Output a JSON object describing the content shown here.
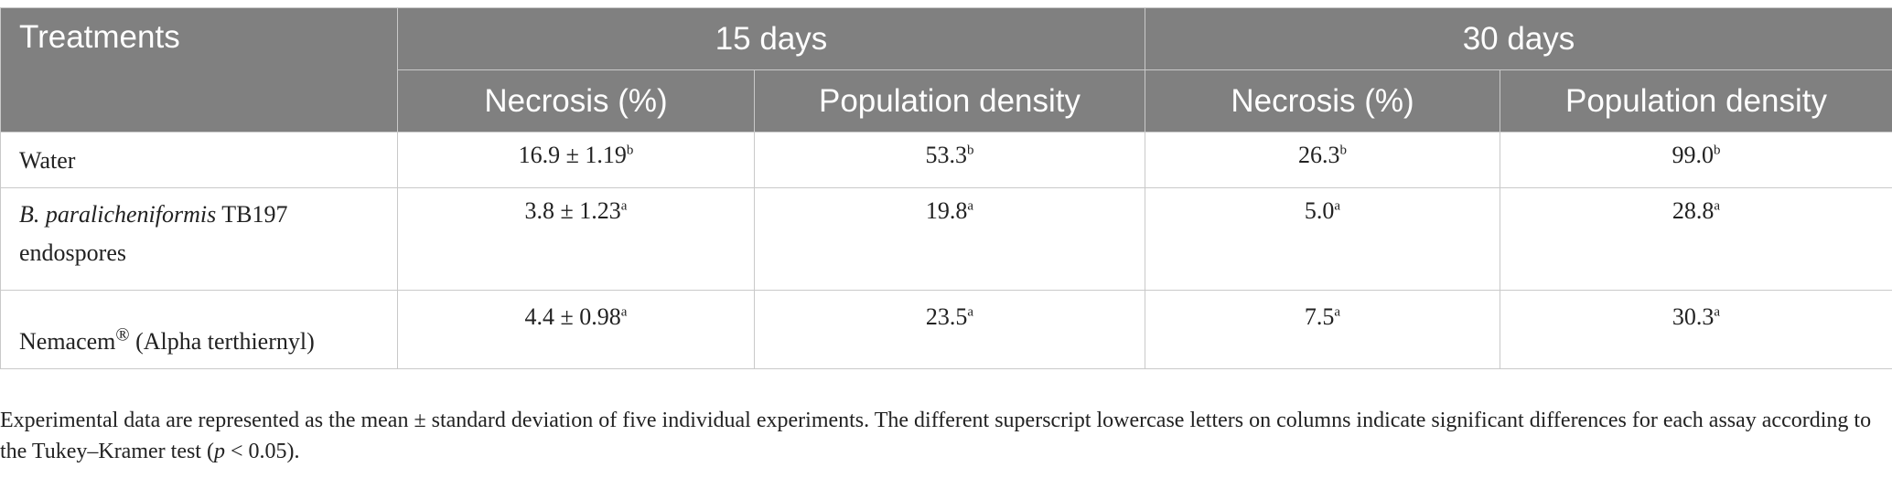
{
  "table": {
    "header": {
      "treatments": "Treatments",
      "group_15": "15 days",
      "group_30": "30 days",
      "necrosis": "Necrosis (%)",
      "population": "Population density"
    },
    "rows": [
      {
        "name": "Water",
        "d15_necrosis": "16.9 ± 1.19",
        "d15_necrosis_sup": "b",
        "d15_pop": "53.3",
        "d15_pop_sup": "b",
        "d30_necrosis": "26.3",
        "d30_necrosis_sup": "b",
        "d30_pop": "99.0",
        "d30_pop_sup": "b"
      },
      {
        "name_italic": "B. paralicheniformis",
        "name_rest": " TB197",
        "name_line2": "endospores",
        "d15_necrosis": "3.8 ± 1.23",
        "d15_necrosis_sup": "a",
        "d15_pop": "19.8",
        "d15_pop_sup": "a",
        "d30_necrosis": "5.0",
        "d30_necrosis_sup": "a",
        "d30_pop": "28.8",
        "d30_pop_sup": "a"
      },
      {
        "name": "Nemacem",
        "name_mark": "®",
        "name_rest": " (Alpha terthiernyl)",
        "d15_necrosis": "4.4 ± 0.98",
        "d15_necrosis_sup": "a",
        "d15_pop": "23.5",
        "d15_pop_sup": "a",
        "d30_necrosis": "7.5",
        "d30_necrosis_sup": "a",
        "d30_pop": "30.3",
        "d30_pop_sup": "a"
      }
    ]
  },
  "footnote": {
    "part1": "Experimental data are represented as the mean ± standard deviation of five individual experiments. The different superscript lowercase letters on columns indicate significant differences for each assay according to the Tukey–Kramer test (",
    "p": "p",
    "part2": " < 0.05)."
  }
}
